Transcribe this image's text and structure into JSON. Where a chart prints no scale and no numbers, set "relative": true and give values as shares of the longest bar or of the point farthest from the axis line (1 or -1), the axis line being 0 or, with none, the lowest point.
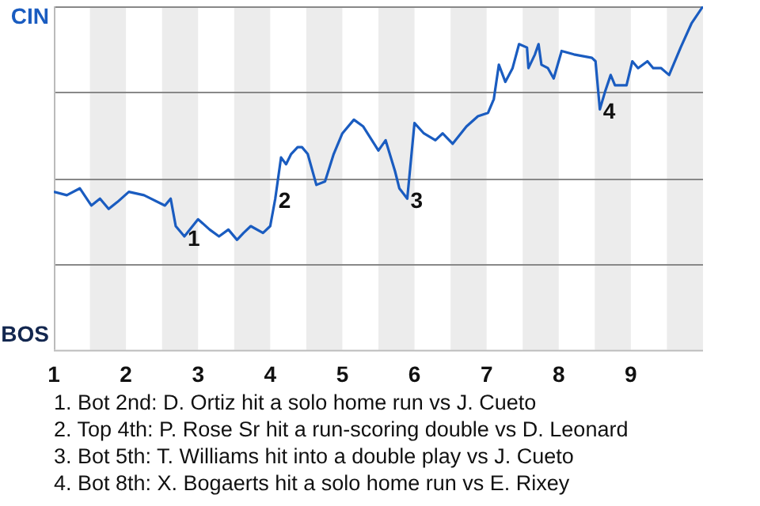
{
  "chart_data": {
    "type": "line",
    "relative": true,
    "xlim": [
      1,
      10
    ],
    "xticks": [
      1,
      2,
      3,
      4,
      5,
      6,
      7,
      8,
      9
    ],
    "legend": false,
    "marker": "none",
    "line_style": "solid",
    "series": [
      {
        "color": "#1a5cc0",
        "x": [
          1.0,
          1.18,
          1.36,
          1.52,
          1.64,
          1.76,
          1.88,
          2.04,
          2.25,
          2.54,
          2.62,
          2.69,
          2.81,
          3.0,
          3.16,
          3.29,
          3.42,
          3.54,
          3.63,
          3.73,
          3.9,
          4.0,
          4.07,
          4.15,
          4.22,
          4.29,
          4.38,
          4.44,
          4.52,
          4.64,
          4.76,
          4.88,
          5.0,
          5.16,
          5.29,
          5.5,
          5.6,
          5.73,
          5.79,
          5.9,
          6.0,
          6.13,
          6.29,
          6.39,
          6.53,
          6.72,
          6.88,
          7.02,
          7.1,
          7.17,
          7.26,
          7.36,
          7.45,
          7.56,
          7.58,
          7.67,
          7.72,
          7.76,
          7.85,
          7.93,
          8.04,
          8.21,
          8.46,
          8.51,
          8.57,
          8.64,
          8.72,
          8.78,
          8.94,
          9.02,
          9.1,
          9.23,
          9.31,
          9.42,
          9.53,
          9.69,
          9.84,
          10.0
        ],
        "values": [
          0.46,
          0.45,
          0.47,
          0.42,
          0.44,
          0.41,
          0.43,
          0.46,
          0.45,
          0.42,
          0.44,
          0.36,
          0.33,
          0.38,
          0.35,
          0.33,
          0.35,
          0.32,
          0.34,
          0.36,
          0.34,
          0.36,
          0.44,
          0.56,
          0.54,
          0.57,
          0.59,
          0.59,
          0.57,
          0.48,
          0.49,
          0.57,
          0.63,
          0.67,
          0.65,
          0.58,
          0.61,
          0.52,
          0.47,
          0.44,
          0.66,
          0.63,
          0.61,
          0.63,
          0.6,
          0.65,
          0.68,
          0.69,
          0.73,
          0.83,
          0.78,
          0.82,
          0.89,
          0.88,
          0.82,
          0.86,
          0.89,
          0.83,
          0.82,
          0.79,
          0.87,
          0.86,
          0.85,
          0.84,
          0.7,
          0.75,
          0.8,
          0.77,
          0.77,
          0.84,
          0.82,
          0.84,
          0.82,
          0.82,
          0.8,
          0.88,
          0.95,
          1.0
        ]
      }
    ],
    "ref_lines": [
      {
        "axis": "y",
        "value": 0.25,
        "color": "#888888"
      },
      {
        "axis": "y",
        "value": 0.5,
        "color": "#888888"
      },
      {
        "axis": "y",
        "value": 0.75,
        "color": "#888888"
      },
      {
        "axis": "y",
        "value": 1,
        "color": "#888888"
      }
    ],
    "bands": [
      {
        "axis": "x",
        "from": 1.5,
        "to": 2,
        "color": "#ececec"
      },
      {
        "axis": "x",
        "from": 2.5,
        "to": 3,
        "color": "#ececec"
      },
      {
        "axis": "x",
        "from": 3.5,
        "to": 4,
        "color": "#ececec"
      },
      {
        "axis": "x",
        "from": 4.5,
        "to": 5,
        "color": "#ececec"
      },
      {
        "axis": "x",
        "from": 5.5,
        "to": 6,
        "color": "#ececec"
      },
      {
        "axis": "x",
        "from": 6.5,
        "to": 7,
        "color": "#ececec"
      },
      {
        "axis": "x",
        "from": 7.5,
        "to": 8,
        "color": "#ececec"
      },
      {
        "axis": "x",
        "from": 8.5,
        "to": 9,
        "color": "#ececec"
      },
      {
        "axis": "x",
        "from": 9.5,
        "to": 10,
        "color": "#ececec"
      }
    ],
    "annotations": [
      "CIN",
      "BOS",
      {
        "text": "1",
        "x": 2.81,
        "y": 0.33
      },
      {
        "text": "2",
        "x": 4.07,
        "y": 0.44
      },
      {
        "text": "3",
        "x": 5.9,
        "y": 0.44
      },
      {
        "text": "4",
        "x": 8.57,
        "y": 0.7
      },
      "1. Bot 2nd: D. Ortiz hit a solo home run vs J. Cueto",
      "2. Top 4th: P. Rose Sr hit a run-scoring double vs D. Leonard",
      "3. Bot 5th: T. Williams hit into a double play vs J. Cueto",
      "4. Bot 8th: X. Bogaerts hit a solo home run vs E. Rixey"
    ]
  }
}
